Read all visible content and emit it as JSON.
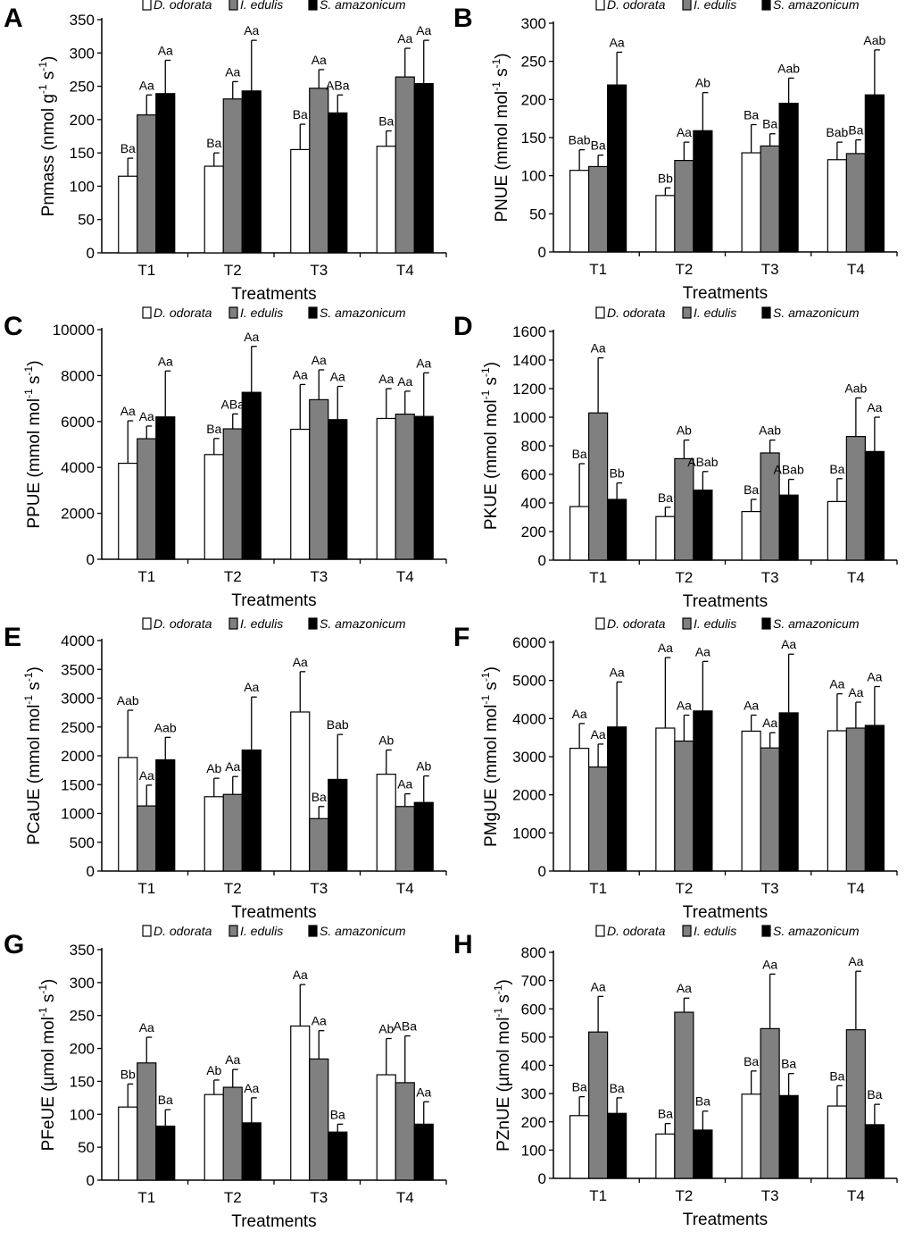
{
  "legend": {
    "entries": [
      {
        "name": "D. odorata",
        "color": "#ffffff"
      },
      {
        "name": "I. edulis",
        "color": "#808080"
      },
      {
        "name": "S. amazonicum",
        "color": "#000000"
      }
    ]
  },
  "chart_data": [
    {
      "panel": "A",
      "type": "bar",
      "ylabel_main": "Pnmass (nmol g",
      "ylabel_sup1": "-1",
      "ylabel_mid": " s",
      "ylabel_sup2": "-1",
      "ylabel_end": ")",
      "xlabel": "Treatments",
      "categories": [
        "T1",
        "T2",
        "T3",
        "T4"
      ],
      "ylim": [
        0,
        350
      ],
      "yticks": [
        0,
        50,
        100,
        150,
        200,
        250,
        300,
        350
      ],
      "series": [
        {
          "name": "D. odorata",
          "values": [
            115,
            130,
            155,
            160
          ],
          "errors": [
            27,
            20,
            38,
            23
          ],
          "labels": [
            "Ba",
            "Ba",
            "Ba",
            "Ba"
          ]
        },
        {
          "name": "I. edulis",
          "values": [
            207,
            231,
            247,
            264
          ],
          "errors": [
            30,
            26,
            28,
            43
          ],
          "labels": [
            "Aa",
            "Aa",
            "Aa",
            "Aa"
          ]
        },
        {
          "name": "S. amazonicum",
          "values": [
            239,
            243,
            210,
            254
          ],
          "errors": [
            50,
            76,
            27,
            65
          ],
          "labels": [
            "Aa",
            "Aa",
            "ABa",
            "Aa"
          ]
        }
      ]
    },
    {
      "panel": "B",
      "type": "bar",
      "ylabel_main": "PNUE (mmol mol",
      "ylabel_sup1": "-1",
      "ylabel_mid": " s",
      "ylabel_sup2": "-1",
      "ylabel_end": ")",
      "xlabel": "Treatments",
      "categories": [
        "T1",
        "T2",
        "T3",
        "T4"
      ],
      "ylim": [
        0,
        300
      ],
      "yticks": [
        0,
        50,
        100,
        150,
        200,
        250,
        300
      ],
      "series": [
        {
          "name": "D. odorata",
          "values": [
            107,
            74,
            130,
            121
          ],
          "errors": [
            27,
            10,
            37,
            23
          ],
          "labels": [
            "Bab",
            "Bb",
            "Ba",
            "Bab"
          ]
        },
        {
          "name": "I. edulis",
          "values": [
            112,
            120,
            139,
            129
          ],
          "errors": [
            15,
            24,
            16,
            18
          ],
          "labels": [
            "Ba",
            "Aa",
            "Ba",
            "Ba"
          ]
        },
        {
          "name": "S. amazonicum",
          "values": [
            219,
            159,
            195,
            206
          ],
          "errors": [
            43,
            50,
            33,
            59
          ],
          "labels": [
            "Aa",
            "Ab",
            "Aab",
            "Aab"
          ]
        }
      ]
    },
    {
      "panel": "C",
      "type": "bar",
      "ylabel_main": "PPUE (mmol mol",
      "ylabel_sup1": "-1",
      "ylabel_mid": " s",
      "ylabel_sup2": "-1",
      "ylabel_end": ")",
      "xlabel": "Treatments",
      "categories": [
        "T1",
        "T2",
        "T3",
        "T4"
      ],
      "ylim": [
        0,
        10000
      ],
      "yticks": [
        0,
        2000,
        4000,
        6000,
        8000,
        10000
      ],
      "series": [
        {
          "name": "D. odorata",
          "values": [
            4180,
            4560,
            5660,
            6130
          ],
          "errors": [
            1850,
            700,
            1950,
            1300
          ],
          "labels": [
            "Aa",
            "Ba",
            "Aa",
            "Aa"
          ]
        },
        {
          "name": "I. edulis",
          "values": [
            5250,
            5680,
            6950,
            6320
          ],
          "errors": [
            550,
            650,
            1300,
            1000
          ],
          "labels": [
            "Aa",
            "ABa",
            "Aa",
            "Aa"
          ]
        },
        {
          "name": "S. amazonicum",
          "values": [
            6200,
            7270,
            6080,
            6220
          ],
          "errors": [
            2000,
            2000,
            1450,
            1900
          ],
          "labels": [
            "Aa",
            "Aa",
            "Aa",
            "Aa"
          ]
        }
      ]
    },
    {
      "panel": "D",
      "type": "bar",
      "ylabel_main": "PKUE (mmol mol",
      "ylabel_sup1": "-1",
      "ylabel_mid": " s",
      "ylabel_sup2": "-1",
      "ylabel_end": ")",
      "xlabel": "Treatments",
      "categories": [
        "T1",
        "T2",
        "T3",
        "T4"
      ],
      "ylim": [
        0,
        1600
      ],
      "yticks": [
        0,
        200,
        400,
        600,
        800,
        1000,
        1200,
        1400,
        1600
      ],
      "series": [
        {
          "name": "D. odorata",
          "values": [
            375,
            305,
            340,
            410
          ],
          "errors": [
            300,
            65,
            85,
            160
          ],
          "labels": [
            "Ba",
            "Ba",
            "Ba",
            "Ba"
          ]
        },
        {
          "name": "I. edulis",
          "values": [
            1030,
            710,
            750,
            865
          ],
          "errors": [
            385,
            130,
            90,
            270
          ],
          "labels": [
            "Aa",
            "Ab",
            "Aab",
            "Aab"
          ]
        },
        {
          "name": "S. amazonicum",
          "values": [
            425,
            490,
            455,
            760
          ],
          "errors": [
            115,
            130,
            110,
            240
          ],
          "labels": [
            "Bb",
            "ABab",
            "ABab",
            "Aa"
          ]
        }
      ]
    },
    {
      "panel": "E",
      "type": "bar",
      "ylabel_main": "PCaUE (mmol mol",
      "ylabel_sup1": "-1",
      "ylabel_mid": " s",
      "ylabel_sup2": "-1",
      "ylabel_end": ")",
      "xlabel": "Treatments",
      "categories": [
        "T1",
        "T2",
        "T3",
        "T4"
      ],
      "ylim": [
        0,
        4000
      ],
      "yticks": [
        0,
        500,
        1000,
        1500,
        2000,
        2500,
        3000,
        3500,
        4000
      ],
      "series": [
        {
          "name": "D. odorata",
          "values": [
            1970,
            1290,
            2760,
            1680
          ],
          "errors": [
            820,
            320,
            700,
            420
          ],
          "labels": [
            "Aab",
            "Ab",
            "Aa",
            "Ab"
          ]
        },
        {
          "name": "I. edulis",
          "values": [
            1130,
            1330,
            910,
            1120
          ],
          "errors": [
            360,
            310,
            210,
            220
          ],
          "labels": [
            "Aa",
            "Aa",
            "Ba",
            "Aa"
          ]
        },
        {
          "name": "S. amazonicum",
          "values": [
            1930,
            2100,
            1590,
            1190
          ],
          "errors": [
            390,
            920,
            780,
            460
          ],
          "labels": [
            "Aab",
            "Aa",
            "Bab",
            "Ab"
          ]
        }
      ]
    },
    {
      "panel": "F",
      "type": "bar",
      "ylabel_main": "PMgUE (mmol mol",
      "ylabel_sup1": "-1",
      "ylabel_mid": " s",
      "ylabel_sup2": "-1",
      "ylabel_end": ")",
      "xlabel": "Treatments",
      "categories": [
        "T1",
        "T2",
        "T3",
        "T4"
      ],
      "ylim": [
        0,
        6000
      ],
      "yticks": [
        0,
        1000,
        2000,
        3000,
        4000,
        5000,
        6000
      ],
      "series": [
        {
          "name": "D. odorata",
          "values": [
            3220,
            3750,
            3670,
            3680
          ],
          "errors": [
            650,
            1850,
            420,
            970
          ],
          "labels": [
            "Aa",
            "Aa",
            "Aa",
            "Aa"
          ]
        },
        {
          "name": "I. edulis",
          "values": [
            2730,
            3410,
            3230,
            3750
          ],
          "errors": [
            600,
            680,
            400,
            680
          ],
          "labels": [
            "Aa",
            "Aa",
            "Aa",
            "Aa"
          ]
        },
        {
          "name": "S. amazonicum",
          "values": [
            3780,
            4200,
            4150,
            3820
          ],
          "errors": [
            1180,
            1300,
            1540,
            1020
          ],
          "labels": [
            "Aa",
            "Aa",
            "Aa",
            "Aa"
          ]
        }
      ]
    },
    {
      "panel": "G",
      "type": "bar",
      "ylabel_main": "PFeUE (µmol mol",
      "ylabel_sup1": "-1",
      "ylabel_mid": " s",
      "ylabel_sup2": "-1",
      "ylabel_end": ")",
      "xlabel": "Treatments",
      "categories": [
        "T1",
        "T2",
        "T3",
        "T4"
      ],
      "ylim": [
        0,
        350
      ],
      "yticks": [
        0,
        50,
        100,
        150,
        200,
        250,
        300,
        350
      ],
      "series": [
        {
          "name": "D. odorata",
          "values": [
            111,
            130,
            234,
            160
          ],
          "errors": [
            35,
            22,
            63,
            55
          ],
          "labels": [
            "Bb",
            "Ab",
            "Aa",
            "Ab"
          ]
        },
        {
          "name": "I. edulis",
          "values": [
            178,
            141,
            184,
            148
          ],
          "errors": [
            39,
            27,
            43,
            71
          ],
          "labels": [
            "Aa",
            "Aa",
            "Aa",
            "ABa"
          ]
        },
        {
          "name": "S. amazonicum",
          "values": [
            82,
            87,
            73,
            85
          ],
          "errors": [
            25,
            38,
            12,
            34
          ],
          "labels": [
            "Ba",
            "Aa",
            "Ba",
            "Aa"
          ]
        }
      ]
    },
    {
      "panel": "H",
      "type": "bar",
      "ylabel_main": "PZnUE (µmol mol",
      "ylabel_sup1": "-1",
      "ylabel_mid": " s",
      "ylabel_sup2": "-1",
      "ylabel_end": ")",
      "xlabel": "Treatments",
      "categories": [
        "T1",
        "T2",
        "T3",
        "T4"
      ],
      "ylim": [
        0,
        800
      ],
      "yticks": [
        0,
        100,
        200,
        300,
        400,
        500,
        600,
        700,
        800
      ],
      "series": [
        {
          "name": "D. odorata",
          "values": [
            222,
            157,
            298,
            256
          ],
          "errors": [
            67,
            37,
            82,
            72
          ],
          "labels": [
            "Ba",
            "Ba",
            "Ba",
            "Ba"
          ]
        },
        {
          "name": "I. edulis",
          "values": [
            518,
            588,
            530,
            526
          ],
          "errors": [
            126,
            50,
            193,
            207
          ],
          "labels": [
            "Aa",
            "Aa",
            "Aa",
            "Aa"
          ]
        },
        {
          "name": "S. amazonicum",
          "values": [
            230,
            171,
            293,
            190
          ],
          "errors": [
            55,
            67,
            78,
            72
          ],
          "labels": [
            "Ba",
            "Ba",
            "Ba",
            "Ba"
          ]
        }
      ]
    }
  ]
}
